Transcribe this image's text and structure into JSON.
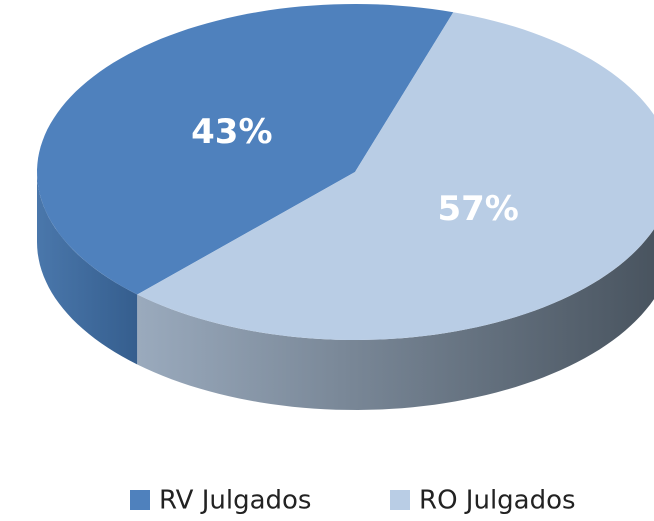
{
  "chart_data": {
    "type": "pie",
    "categories": [
      "RV Julgados",
      "RO Julgados"
    ],
    "values": [
      43,
      57
    ],
    "value_labels": [
      "43%",
      "57%"
    ],
    "colors": [
      "#4f81bd",
      "#b9cde5"
    ],
    "legend": "bottom"
  }
}
